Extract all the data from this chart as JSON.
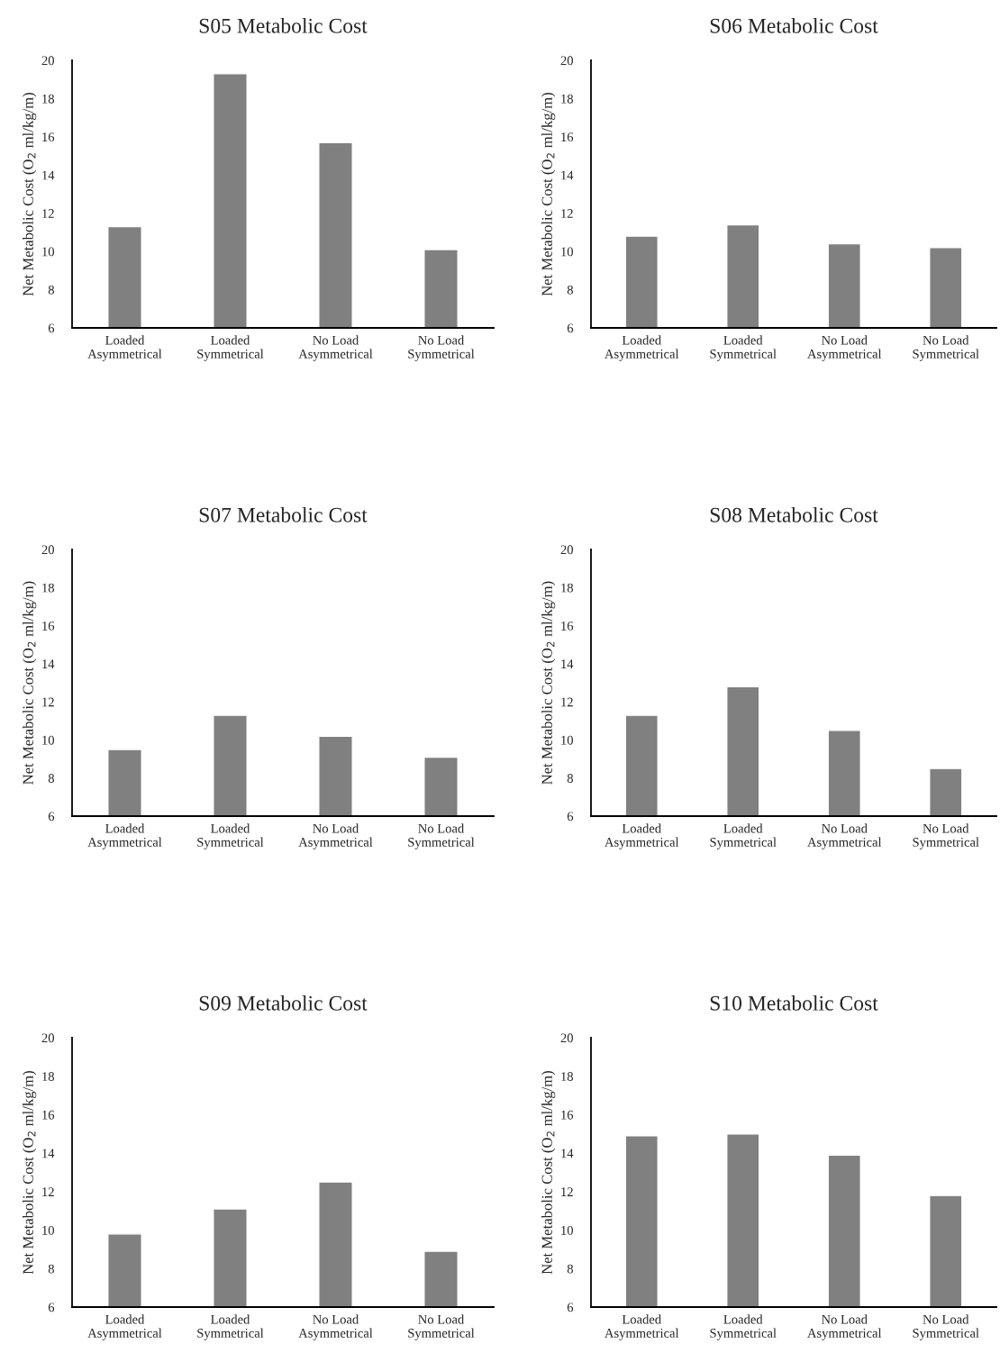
{
  "chart_data": [
    {
      "type": "bar",
      "title": "S05 Metabolic Cost",
      "ylabel": "Net Metabolic Cost (O$_{2}$ ml/kg/m)",
      "categories": [
        "Loaded\nAsymmetrical",
        "Loaded\nSymmetrical",
        "No Load\nAsymmetrical",
        "No Load\nSymmetrical"
      ],
      "values": [
        11.3,
        19.3,
        15.7,
        10.1
      ],
      "color": "#808080",
      "ylim": [
        6,
        20
      ],
      "yticks": [
        6,
        8,
        10,
        12,
        14,
        16,
        18,
        20
      ],
      "grid": false,
      "legend": false
    },
    {
      "type": "bar",
      "title": "S06 Metabolic Cost",
      "ylabel": "Net Metabolic Cost (O$_{2}$ ml/kg/m)",
      "categories": [
        "Loaded\nAsymmetrical",
        "Loaded\nSymmetrical",
        "No Load\nAsymmetrical",
        "No Load\nSymmetrical"
      ],
      "values": [
        10.8,
        11.4,
        10.4,
        10.2
      ],
      "color": "#808080",
      "ylim": [
        6,
        20
      ],
      "yticks": [
        6,
        8,
        10,
        12,
        14,
        16,
        18,
        20
      ],
      "grid": false,
      "legend": false
    },
    {
      "type": "bar",
      "title": "S07 Metabolic Cost",
      "ylabel": "Net Metabolic Cost (O$_{2}$ ml/kg/m)",
      "categories": [
        "Loaded\nAsymmetrical",
        "Loaded\nSymmetrical",
        "No Load\nAsymmetrical",
        "No Load\nSymmetrical"
      ],
      "values": [
        9.5,
        11.3,
        10.2,
        9.1
      ],
      "color": "#808080",
      "ylim": [
        6,
        20
      ],
      "yticks": [
        6,
        8,
        10,
        12,
        14,
        16,
        18,
        20
      ],
      "grid": false,
      "legend": false
    },
    {
      "type": "bar",
      "title": "S08 Metabolic Cost",
      "ylabel": "Net Metabolic Cost (O$_{2}$ ml/kg/m)",
      "categories": [
        "Loaded\nAsymmetrical",
        "Loaded\nSymmetrical",
        "No Load\nAsymmetrical",
        "No Load\nSymmetrical"
      ],
      "values": [
        11.3,
        12.8,
        10.5,
        8.5
      ],
      "color": "#808080",
      "ylim": [
        6,
        20
      ],
      "yticks": [
        6,
        8,
        10,
        12,
        14,
        16,
        18,
        20
      ],
      "grid": false,
      "legend": false
    },
    {
      "type": "bar",
      "title": "S09 Metabolic Cost",
      "ylabel": "Net Metabolic Cost (O$_{2}$ ml/kg/m)",
      "categories": [
        "Loaded\nAsymmetrical",
        "Loaded\nSymmetrical",
        "No Load\nAsymmetrical",
        "No Load\nSymmetrical"
      ],
      "values": [
        9.8,
        11.1,
        12.5,
        8.9
      ],
      "color": "#808080",
      "ylim": [
        6,
        20
      ],
      "yticks": [
        6,
        8,
        10,
        12,
        14,
        16,
        18,
        20
      ],
      "grid": false,
      "legend": false
    },
    {
      "type": "bar",
      "title": "S10 Metabolic Cost",
      "ylabel": "Net Metabolic Cost (O$_{2}$ ml/kg/m)",
      "categories": [
        "Loaded\nAsymmetrical",
        "Loaded\nSymmetrical",
        "No Load\nAsymmetrical",
        "No Load\nSymmetrical"
      ],
      "values": [
        14.9,
        15.0,
        13.9,
        11.8
      ],
      "color": "#808080",
      "ylim": [
        6,
        20
      ],
      "yticks": [
        6,
        8,
        10,
        12,
        14,
        16,
        18,
        20
      ],
      "grid": false,
      "legend": false
    }
  ]
}
